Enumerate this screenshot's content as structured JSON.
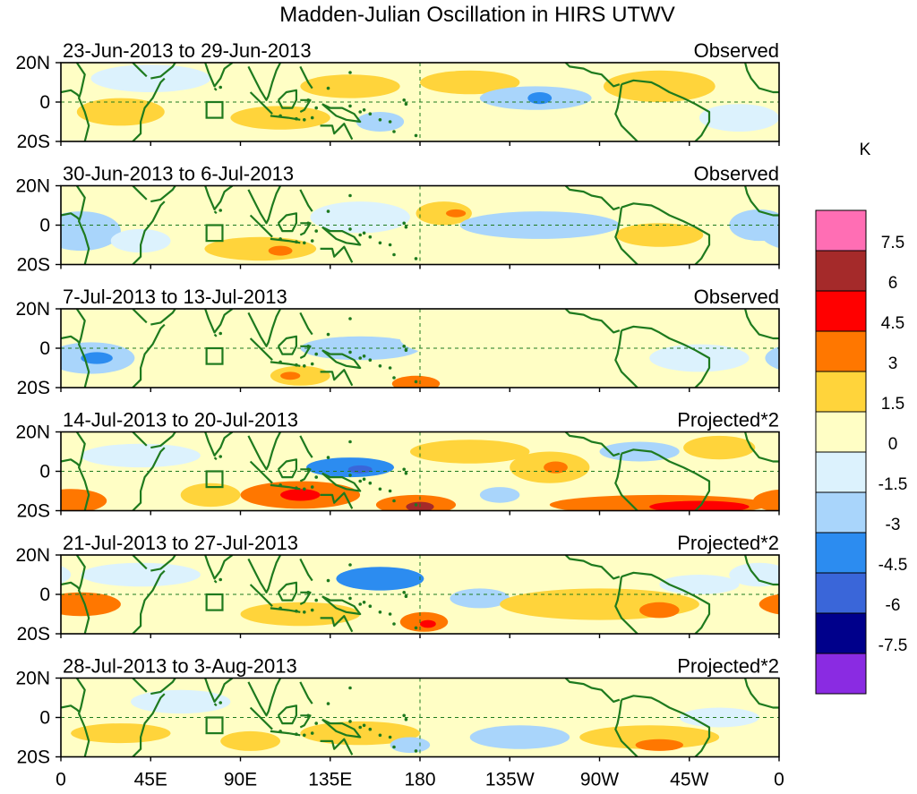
{
  "title": "Madden-Julian Oscillation in HIRS UTWV",
  "colorbar": {
    "unit": "K",
    "tick_labels": [
      "7.5",
      "6",
      "4.5",
      "3",
      "1.5",
      "0",
      "-1.5",
      "-3",
      "-4.5",
      "-6",
      "-7.5"
    ],
    "colors": [
      "#ff6eb4",
      "#a52a2a",
      "#ff0000",
      "#ff7700",
      "#ffd43b",
      "#fffec5",
      "#dcf2fd",
      "#a9d5fb",
      "#2c8cf0",
      "#3a66d9",
      "#00008b",
      "#8a2be2"
    ]
  },
  "axes": {
    "lat_labels": [
      "20N",
      "0",
      "20S"
    ],
    "lon_labels": [
      "0",
      "45E",
      "90E",
      "135E",
      "180",
      "135W",
      "90W",
      "45W",
      "0"
    ]
  },
  "chart_data": {
    "type": "heatmap",
    "variable": "UTWV",
    "unit": "K",
    "levels": [
      -7.5,
      -6,
      -4.5,
      -3,
      -1.5,
      0,
      1.5,
      3,
      4.5,
      6,
      7.5
    ],
    "lon_range": [
      0,
      360
    ],
    "lat_range": [
      -20,
      20
    ],
    "panels": [
      {
        "date_range": "23-Jun-2013 to 29-Jun-2013",
        "type": "Observed",
        "blobs": [
          {
            "lon": 30,
            "lat": -5,
            "rx": 22,
            "ry": 7,
            "v": 2
          },
          {
            "lon": 45,
            "lat": 12,
            "rx": 30,
            "ry": 7,
            "v": -1.5
          },
          {
            "lon": 110,
            "lat": -8,
            "rx": 25,
            "ry": 6,
            "v": 2
          },
          {
            "lon": 145,
            "lat": 8,
            "rx": 25,
            "ry": 6,
            "v": 2
          },
          {
            "lon": 160,
            "lat": -10,
            "rx": 12,
            "ry": 5,
            "v": -3
          },
          {
            "lon": 205,
            "lat": 10,
            "rx": 25,
            "ry": 6,
            "v": 2
          },
          {
            "lon": 238,
            "lat": 2,
            "rx": 28,
            "ry": 6,
            "v": -2
          },
          {
            "lon": 240,
            "lat": 2,
            "rx": 6,
            "ry": 3,
            "v": -3.5
          },
          {
            "lon": 300,
            "lat": 8,
            "rx": 28,
            "ry": 8,
            "v": 1.5
          },
          {
            "lon": 340,
            "lat": -8,
            "rx": 20,
            "ry": 7,
            "v": -1.5
          }
        ]
      },
      {
        "date_range": "30-Jun-2013 to 6-Jul-2013",
        "type": "Observed",
        "blobs": [
          {
            "lon": 10,
            "lat": -3,
            "rx": 20,
            "ry": 10,
            "v": -2.2
          },
          {
            "lon": 40,
            "lat": -8,
            "rx": 15,
            "ry": 6,
            "v": -1.5
          },
          {
            "lon": 100,
            "lat": -12,
            "rx": 28,
            "ry": 6,
            "v": 2.5
          },
          {
            "lon": 110,
            "lat": -13,
            "rx": 6,
            "ry": 2.5,
            "v": 3.5
          },
          {
            "lon": 150,
            "lat": 4,
            "rx": 25,
            "ry": 8,
            "v": -1.5
          },
          {
            "lon": 192,
            "lat": 6,
            "rx": 14,
            "ry": 6,
            "v": 2.5
          },
          {
            "lon": 198,
            "lat": 6,
            "rx": 5,
            "ry": 2,
            "v": 3.5
          },
          {
            "lon": 240,
            "lat": 0,
            "rx": 40,
            "ry": 7,
            "v": -1.8
          },
          {
            "lon": 300,
            "lat": -5,
            "rx": 22,
            "ry": 6,
            "v": 1.5
          },
          {
            "lon": 350,
            "lat": 0,
            "rx": 15,
            "ry": 8,
            "v": -2
          }
        ]
      },
      {
        "date_range": "7-Jul-2013 to 13-Jul-2013",
        "type": "Observed",
        "blobs": [
          {
            "lon": 15,
            "lat": -5,
            "rx": 22,
            "ry": 8,
            "v": -2.5
          },
          {
            "lon": 18,
            "lat": -5,
            "rx": 8,
            "ry": 3,
            "v": -3.5
          },
          {
            "lon": 120,
            "lat": -14,
            "rx": 15,
            "ry": 5,
            "v": 2.5
          },
          {
            "lon": 115,
            "lat": -14,
            "rx": 5,
            "ry": 2,
            "v": 3.5
          },
          {
            "lon": 150,
            "lat": 0,
            "rx": 30,
            "ry": 6,
            "v": -1.8
          },
          {
            "lon": 178,
            "lat": -18,
            "rx": 12,
            "ry": 4,
            "v": 3.2
          },
          {
            "lon": 210,
            "lat": 5,
            "rx": 40,
            "ry": 10,
            "v": 1.2
          },
          {
            "lon": 290,
            "lat": 10,
            "rx": 35,
            "ry": 8,
            "v": 1.2
          },
          {
            "lon": 320,
            "lat": -5,
            "rx": 25,
            "ry": 7,
            "v": -1.5
          }
        ]
      },
      {
        "date_range": "14-Jul-2013 to 20-Jul-2013",
        "type": "Projected*2",
        "blobs": [
          {
            "lon": 5,
            "lat": -15,
            "rx": 18,
            "ry": 6,
            "v": 3.2
          },
          {
            "lon": 40,
            "lat": 8,
            "rx": 30,
            "ry": 6,
            "v": -1.5
          },
          {
            "lon": 75,
            "lat": -12,
            "rx": 15,
            "ry": 6,
            "v": 1.6
          },
          {
            "lon": 120,
            "lat": -12,
            "rx": 30,
            "ry": 7,
            "v": 3.5
          },
          {
            "lon": 120,
            "lat": -12,
            "rx": 10,
            "ry": 3,
            "v": 4.8
          },
          {
            "lon": 145,
            "lat": 2,
            "rx": 22,
            "ry": 5,
            "v": -3.5
          },
          {
            "lon": 150,
            "lat": 1,
            "rx": 6,
            "ry": 2,
            "v": -5
          },
          {
            "lon": 178,
            "lat": -17,
            "rx": 20,
            "ry": 5,
            "v": 4
          },
          {
            "lon": 180,
            "lat": -18,
            "rx": 7,
            "ry": 2.5,
            "v": 6.2
          },
          {
            "lon": 205,
            "lat": 10,
            "rx": 30,
            "ry": 6,
            "v": 2
          },
          {
            "lon": 220,
            "lat": -12,
            "rx": 10,
            "ry": 4,
            "v": -3
          },
          {
            "lon": 245,
            "lat": 2,
            "rx": 20,
            "ry": 8,
            "v": 2.5
          },
          {
            "lon": 248,
            "lat": 2,
            "rx": 6,
            "ry": 3,
            "v": 3.5
          },
          {
            "lon": 300,
            "lat": -17,
            "rx": 55,
            "ry": 5,
            "v": 3.5
          },
          {
            "lon": 320,
            "lat": -18,
            "rx": 25,
            "ry": 3,
            "v": 4.8
          },
          {
            "lon": 290,
            "lat": 10,
            "rx": 20,
            "ry": 5,
            "v": -1.6
          },
          {
            "lon": 330,
            "lat": 12,
            "rx": 18,
            "ry": 6,
            "v": 1.6
          }
        ]
      },
      {
        "date_range": "21-Jul-2013 to 27-Jul-2013",
        "type": "Projected*2",
        "blobs": [
          {
            "lon": 10,
            "lat": -5,
            "rx": 20,
            "ry": 6,
            "v": 3.2
          },
          {
            "lon": 40,
            "lat": 10,
            "rx": 30,
            "ry": 6,
            "v": -1.5
          },
          {
            "lon": 120,
            "lat": -10,
            "rx": 30,
            "ry": 6,
            "v": 2.5
          },
          {
            "lon": 160,
            "lat": 8,
            "rx": 22,
            "ry": 6,
            "v": -3.2
          },
          {
            "lon": 182,
            "lat": -14,
            "rx": 12,
            "ry": 5,
            "v": 3.5
          },
          {
            "lon": 184,
            "lat": -15,
            "rx": 4,
            "ry": 2,
            "v": 5
          },
          {
            "lon": 210,
            "lat": -2,
            "rx": 15,
            "ry": 5,
            "v": -1.6
          },
          {
            "lon": 270,
            "lat": -5,
            "rx": 50,
            "ry": 8,
            "v": 2
          },
          {
            "lon": 300,
            "lat": -8,
            "rx": 10,
            "ry": 4,
            "v": 3.4
          },
          {
            "lon": 320,
            "lat": 5,
            "rx": 20,
            "ry": 5,
            "v": -1.5
          },
          {
            "lon": 350,
            "lat": 10,
            "rx": 15,
            "ry": 6,
            "v": -1.5
          }
        ]
      },
      {
        "date_range": "28-Jul-2013 to 3-Aug-2013",
        "type": "Projected*2",
        "blobs": [
          {
            "lon": 30,
            "lat": -8,
            "rx": 25,
            "ry": 5,
            "v": 1.6
          },
          {
            "lon": 60,
            "lat": 8,
            "rx": 25,
            "ry": 6,
            "v": -1.5
          },
          {
            "lon": 95,
            "lat": -12,
            "rx": 15,
            "ry": 5,
            "v": 1.8
          },
          {
            "lon": 150,
            "lat": -8,
            "rx": 30,
            "ry": 6,
            "v": 1.6
          },
          {
            "lon": 175,
            "lat": -14,
            "rx": 10,
            "ry": 4,
            "v": -1.6
          },
          {
            "lon": 200,
            "lat": 8,
            "rx": 40,
            "ry": 6,
            "v": 0.8
          },
          {
            "lon": 230,
            "lat": -10,
            "rx": 25,
            "ry": 6,
            "v": -1.6
          },
          {
            "lon": 295,
            "lat": -10,
            "rx": 35,
            "ry": 6,
            "v": 1.8
          },
          {
            "lon": 300,
            "lat": -14,
            "rx": 12,
            "ry": 3,
            "v": 3.2
          },
          {
            "lon": 330,
            "lat": 0,
            "rx": 20,
            "ry": 5,
            "v": -1.5
          }
        ]
      }
    ]
  }
}
